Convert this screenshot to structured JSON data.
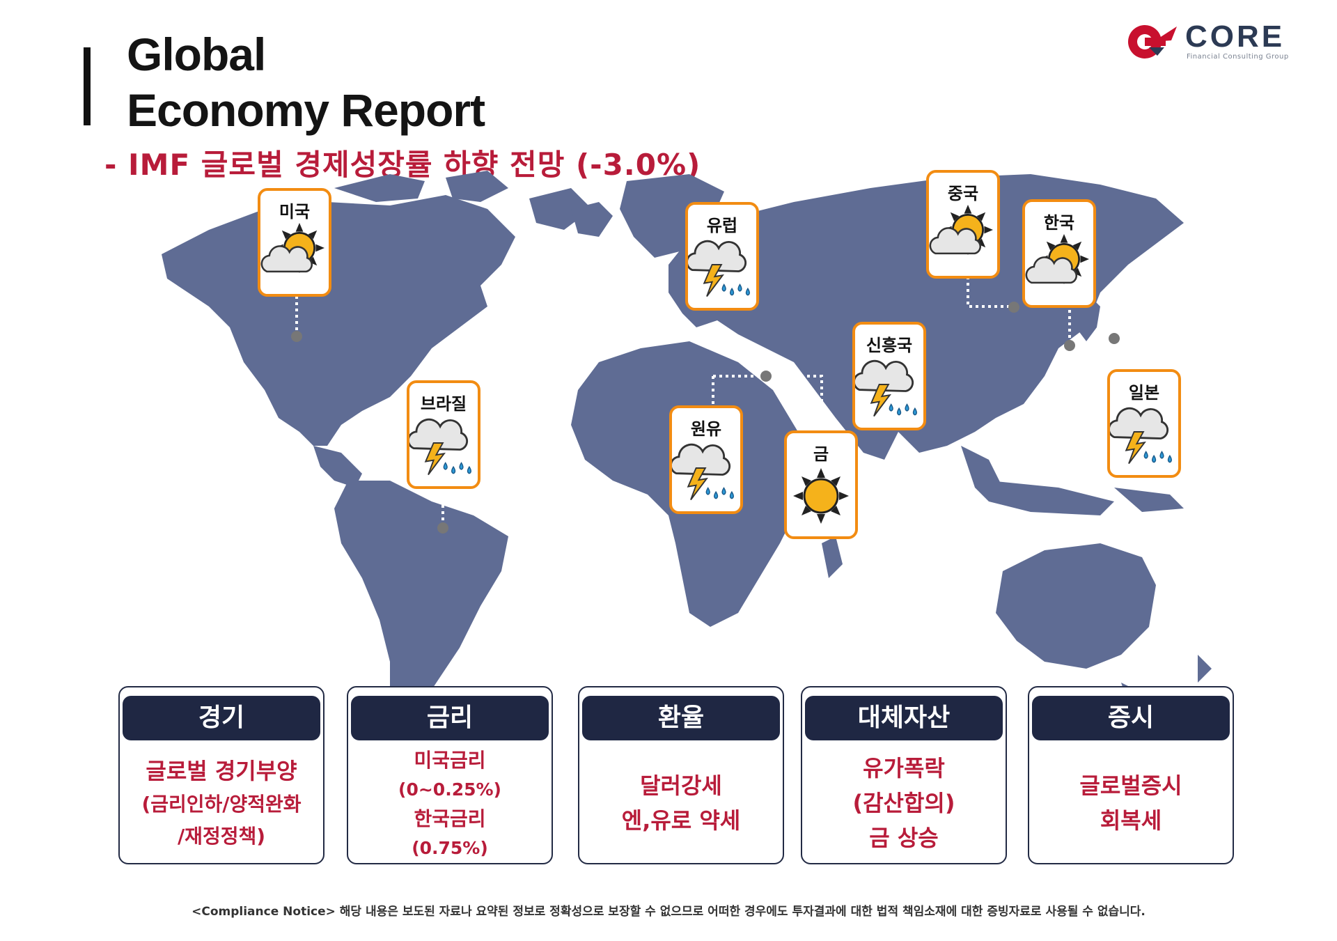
{
  "header": {
    "title_line1": "Global",
    "title_line2": "Economy Report",
    "subtitle": "- IMF 글로벌 경제성장률 하향 전망 (-3.0%)"
  },
  "logo": {
    "word": "CORE",
    "tagline": "Financial Consulting Group",
    "accent_color": "#c8102e"
  },
  "map": {
    "land_color": "#5f6c94",
    "markers": [
      {
        "label": "미국",
        "weather": "partly-sunny-icon"
      },
      {
        "label": "브라질",
        "weather": "thunderstorm-icon"
      },
      {
        "label": "유럽",
        "weather": "thunderstorm-icon"
      },
      {
        "label": "원유",
        "weather": "thunderstorm-icon"
      },
      {
        "label": "금",
        "weather": "sunny-icon"
      },
      {
        "label": "신흥국",
        "weather": "thunderstorm-icon"
      },
      {
        "label": "중국",
        "weather": "partly-sunny-icon"
      },
      {
        "label": "한국",
        "weather": "partly-sunny-icon"
      },
      {
        "label": "일본",
        "weather": "thunderstorm-icon"
      }
    ]
  },
  "info_boxes": [
    {
      "title": "경기",
      "lines": [
        "글로벌 경기부양",
        "(금리인하/양적완화",
        "/재정정책)"
      ]
    },
    {
      "title": "금리",
      "lines": [
        "미국금리",
        "(0~0.25%)",
        "한국금리",
        "(0.75%)"
      ]
    },
    {
      "title": "환율",
      "lines": [
        "달러강세",
        "엔,유로 약세"
      ]
    },
    {
      "title": "대체자산",
      "lines": [
        "유가폭락",
        "(감산합의)",
        "금 상승"
      ]
    },
    {
      "title": "증시",
      "lines": [
        "글로벌증시",
        "회복세"
      ]
    }
  ],
  "footer": {
    "notice": "<Compliance Notice> 해당 내용은 보도된 자료나 요약된 정보로 정확성으로 보장할 수 없으므로 어떠한 경우에도 투자결과에 대한 법적 책임소재에 대한 증빙자료로 사용될 수 없습니다."
  },
  "colors": {
    "accent_red": "#b81c3a",
    "card_border": "#f28c12",
    "box_header": "#1f2743"
  }
}
